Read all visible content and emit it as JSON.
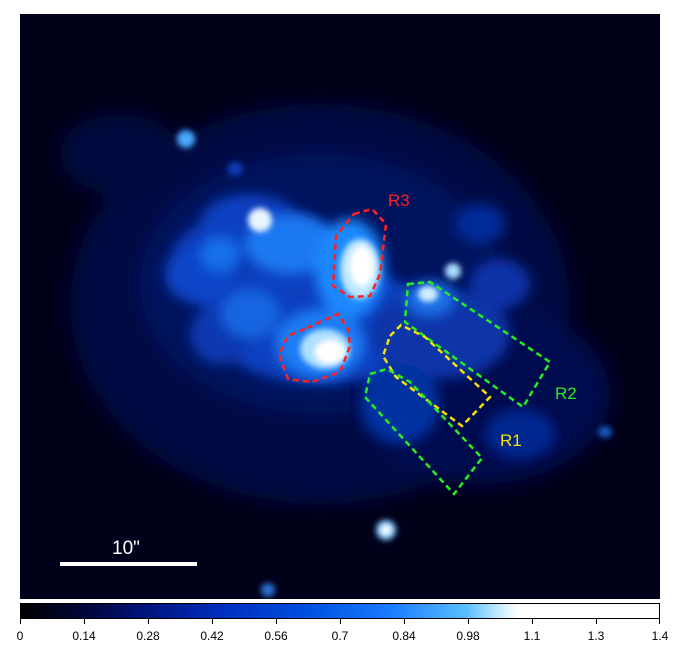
{
  "image": {
    "description_colormap": [
      "#00001a",
      "#001070",
      "#0040c8",
      "#1f8cff",
      "#9fdcff",
      "#ffffff"
    ],
    "scale_bar": {
      "label": "10\""
    }
  },
  "regions": [
    {
      "id": "R3",
      "label": "R3",
      "color": "#ff2020"
    },
    {
      "id": "R2",
      "label": "R2",
      "color": "#22ee22"
    },
    {
      "id": "R1",
      "label": "R1",
      "color": "#f5e000"
    }
  ],
  "colorbar": {
    "ticks": [
      "0",
      "0.14",
      "0.28",
      "0.42",
      "0.56",
      "0.7",
      "0.84",
      "0.98",
      "1.1",
      "1.3",
      "1.4"
    ]
  }
}
